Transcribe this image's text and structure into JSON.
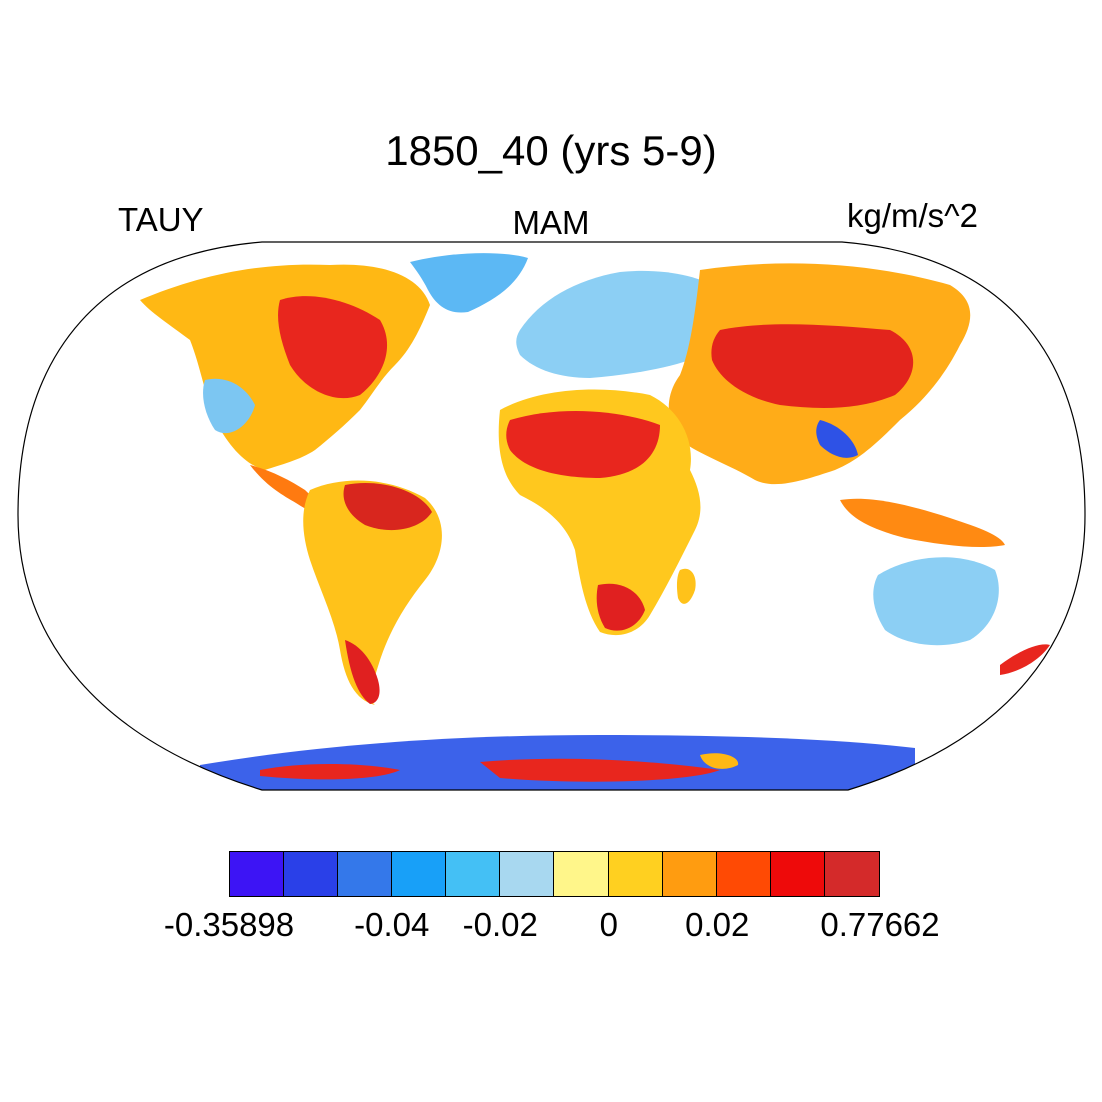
{
  "title": "1850_40 (yrs 5-9)",
  "left_label": "TAUY",
  "center_label": "MAM",
  "right_label": "kg/m/s^2",
  "colorbar": {
    "colors": [
      "#3d14f5",
      "#2a40e8",
      "#3478ea",
      "#18a0f8",
      "#44c0f5",
      "#a8d8f0",
      "#fff68a",
      "#ffd020",
      "#ff9c10",
      "#ff4a04",
      "#ee0a0a",
      "#d42a2a"
    ],
    "labels": [
      {
        "text": "-0.35898",
        "at_boundary": 0
      },
      {
        "text": "-0.04",
        "at_boundary": 3
      },
      {
        "text": "-0.02",
        "at_boundary": 5
      },
      {
        "text": "0",
        "at_boundary": 7
      },
      {
        "text": "0.02",
        "at_boundary": 9
      },
      {
        "text": "0.77662",
        "at_boundary": 12
      }
    ]
  }
}
